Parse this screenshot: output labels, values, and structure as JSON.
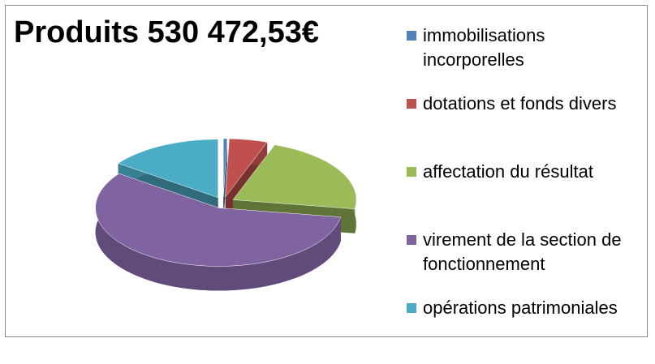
{
  "chart_data": {
    "type": "pie",
    "title": "Produits 530 472,53€",
    "categories": [
      "immobilisations incorporelles",
      "dotations et fonds divers",
      "affectation du résultat",
      "virement de la section de fonctionnement",
      "opérations patrimoniales"
    ],
    "values": [
      0.5,
      5,
      22,
      57.5,
      15
    ],
    "colors": [
      "#4f81bd",
      "#c0504d",
      "#9bbb59",
      "#8064a2",
      "#4bacc6"
    ],
    "legend": "right"
  }
}
